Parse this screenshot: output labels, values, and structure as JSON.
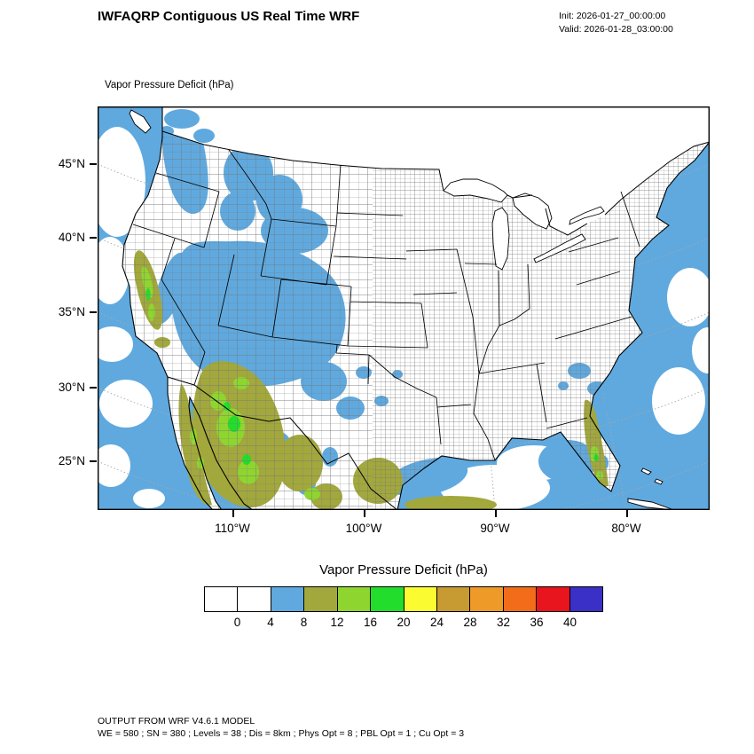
{
  "header": {
    "title": "IWFAQRP Contiguous US Real Time WRF",
    "init_label": "Init: 2026-01-27_00:00:00",
    "valid_label": "Valid: 2026-01-28_03:00:00"
  },
  "map": {
    "subtitle": "Vapor Pressure Deficit   (hPa)",
    "lat_labels": [
      "45°N",
      "40°N",
      "35°N",
      "30°N",
      "25°N"
    ],
    "lon_labels": [
      "110°W",
      "100°W",
      "90°W",
      "80°W"
    ]
  },
  "colorbar": {
    "title": "Vapor Pressure Deficit  (hPa)",
    "tick_labels": [
      "0",
      "4",
      "8",
      "12",
      "16",
      "20",
      "24",
      "28",
      "32",
      "36",
      "40"
    ],
    "colors": [
      "#ffffff",
      "#ffffff",
      "#5fa9df",
      "#a2a83c",
      "#8fd52f",
      "#22dd2b",
      "#fbfb32",
      "#c89a32",
      "#ee9a28",
      "#f26c1a",
      "#e8141e",
      "#3a30c8"
    ],
    "units": "hPa"
  },
  "footer": {
    "line1": "OUTPUT FROM WRF V4.6.1 MODEL",
    "line2": "WE = 580 ; SN = 380 ; Levels = 38 ; Dis = 8km ; Phys Opt = 8 ; PBL Opt = 1 ; Cu Opt = 3"
  }
}
